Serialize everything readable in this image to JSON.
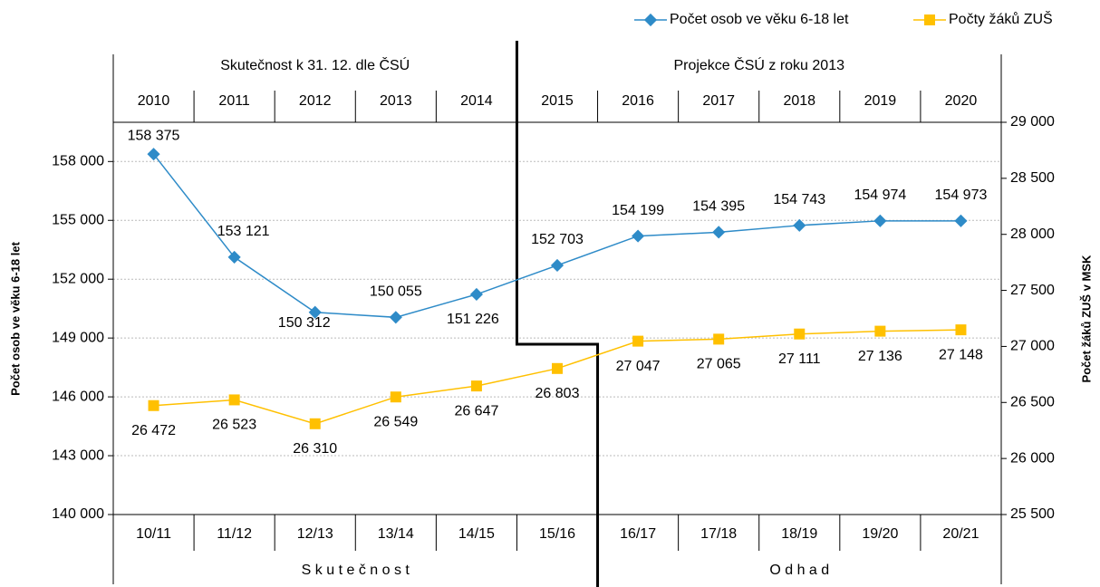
{
  "chart_data": {
    "type": "line",
    "legend": "top-right",
    "grid": true,
    "y_label": "Počet osob ve věku 6-18 let",
    "y2_label": "Počet žáků ZUŠ v MSK",
    "top_groups": [
      "Skutečnost  k 31. 12. dle  ČSÚ",
      "Projekce ČSÚ  z roku 2013"
    ],
    "bottom_groups": [
      "S k u t e č n o s t",
      "O d h a d"
    ],
    "categories": [
      "2010",
      "2011",
      "2012",
      "2013",
      "2014",
      "2015",
      "2016",
      "2017",
      "2018",
      "2019",
      "2020"
    ],
    "bottom_categories": [
      "10/11",
      "11/12",
      "12/13",
      "13/14",
      "14/15",
      "15/16",
      "16/17",
      "17/18",
      "18/19",
      "19/20",
      "20/21"
    ],
    "series": [
      {
        "name": "Počet osob ve věku 6-18 let",
        "color": "#2E8BC8",
        "values": [
          158375,
          153121,
          150312,
          150055,
          151226,
          152703,
          154199,
          154395,
          154743,
          154974,
          154973
        ],
        "value_labels": [
          "158 375",
          "153 121",
          "150 312",
          "150 055",
          "151 226",
          "152 703",
          "154 199",
          "154 395",
          "154 743",
          "154 974",
          "154 973"
        ]
      },
      {
        "name": "Počty žáků ZUŠ",
        "color": "#FFC000",
        "axis": "y2",
        "values": [
          26472,
          26523,
          26310,
          26549,
          26647,
          26803,
          27047,
          27065,
          27111,
          27136,
          27148
        ],
        "value_labels": [
          "26 472",
          "26 523",
          "26 310",
          "26 549",
          "26 647",
          "26 803",
          "27 047",
          "27 065",
          "27 111",
          "27 136",
          "27 148"
        ]
      }
    ],
    "ylim": [
      140000,
      160000
    ],
    "yticks": [
      {
        "value": 140000,
        "label": "140 000"
      },
      {
        "value": 143000,
        "label": "143 000"
      },
      {
        "value": 146000,
        "label": "146 000"
      },
      {
        "value": 149000,
        "label": "149 000"
      },
      {
        "value": 152000,
        "label": "152 000"
      },
      {
        "value": 155000,
        "label": "155 000"
      },
      {
        "value": 158000,
        "label": "158 000"
      }
    ],
    "y2lim": [
      25500,
      29000
    ],
    "y2ticks": [
      {
        "value": 25500,
        "label": "25 500"
      },
      {
        "value": 26000,
        "label": "26 000"
      },
      {
        "value": 26500,
        "label": "26 500"
      },
      {
        "value": 27000,
        "label": "27 000"
      },
      {
        "value": 27500,
        "label": "27 500"
      },
      {
        "value": 28000,
        "label": "28 000"
      },
      {
        "value": 28500,
        "label": "28 500"
      },
      {
        "value": 29000,
        "label": "29 000"
      }
    ]
  }
}
